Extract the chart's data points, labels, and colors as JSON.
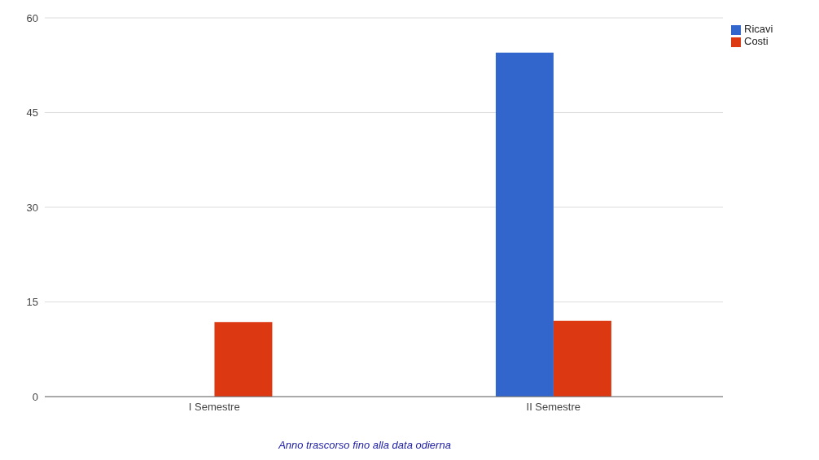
{
  "chart_data": {
    "type": "bar",
    "xlabel": "Anno trascorso fino alla data odierna",
    "categories": [
      "I Semestre",
      "II Semestre"
    ],
    "series": [
      {
        "name": "Ricavi",
        "color": "#3366cc",
        "values": [
          0,
          54.5
        ]
      },
      {
        "name": "Costi",
        "color": "#dc3912",
        "values": [
          11.8,
          12
        ]
      }
    ],
    "ylim": [
      0,
      60
    ],
    "yticks": [
      0,
      15,
      30,
      45,
      60
    ],
    "grid": "y",
    "legend": "top right"
  }
}
